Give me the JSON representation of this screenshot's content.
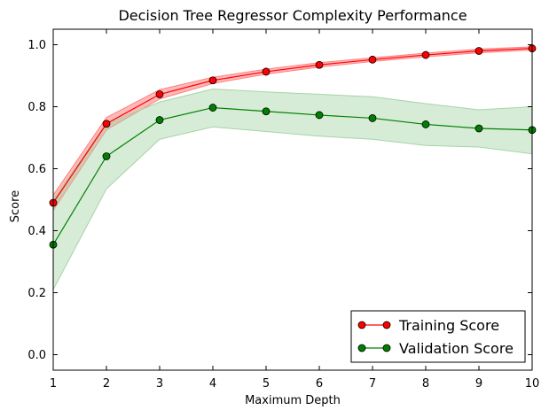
{
  "chart_data": {
    "type": "line",
    "title": "Decision Tree Regressor Complexity Performance",
    "xlabel": "Maximum Depth",
    "ylabel": "Score",
    "xlim": [
      1,
      10
    ],
    "ylim": [
      -0.05,
      1.05
    ],
    "x": [
      1,
      2,
      3,
      4,
      5,
      6,
      7,
      8,
      9,
      10
    ],
    "x_ticks": [
      "1",
      "2",
      "3",
      "4",
      "5",
      "6",
      "7",
      "8",
      "9",
      "10"
    ],
    "y_ticks": [
      "0.0",
      "0.2",
      "0.4",
      "0.6",
      "0.8",
      "1.0"
    ],
    "y_tick_values": [
      0.0,
      0.2,
      0.4,
      0.6,
      0.8,
      1.0
    ],
    "grid": false,
    "legend_position": "bottom-right",
    "series": [
      {
        "name": "Training Score",
        "color": "#ff0000",
        "band_color": "#ff8080",
        "values": [
          0.49,
          0.745,
          0.84,
          0.885,
          0.913,
          0.935,
          0.952,
          0.967,
          0.98,
          0.988
        ],
        "lower": [
          0.465,
          0.725,
          0.825,
          0.875,
          0.905,
          0.928,
          0.946,
          0.961,
          0.974,
          0.983
        ],
        "upper": [
          0.515,
          0.765,
          0.855,
          0.895,
          0.921,
          0.942,
          0.958,
          0.973,
          0.986,
          0.993
        ]
      },
      {
        "name": "Validation Score",
        "color": "#008000",
        "band_color": "#a6d4a6",
        "values": [
          0.355,
          0.64,
          0.757,
          0.797,
          0.785,
          0.773,
          0.763,
          0.743,
          0.73,
          0.725
        ],
        "lower": [
          0.21,
          0.535,
          0.695,
          0.735,
          0.72,
          0.705,
          0.695,
          0.675,
          0.67,
          0.648
        ],
        "upper": [
          0.5,
          0.745,
          0.815,
          0.857,
          0.848,
          0.84,
          0.832,
          0.81,
          0.79,
          0.8
        ]
      }
    ]
  }
}
